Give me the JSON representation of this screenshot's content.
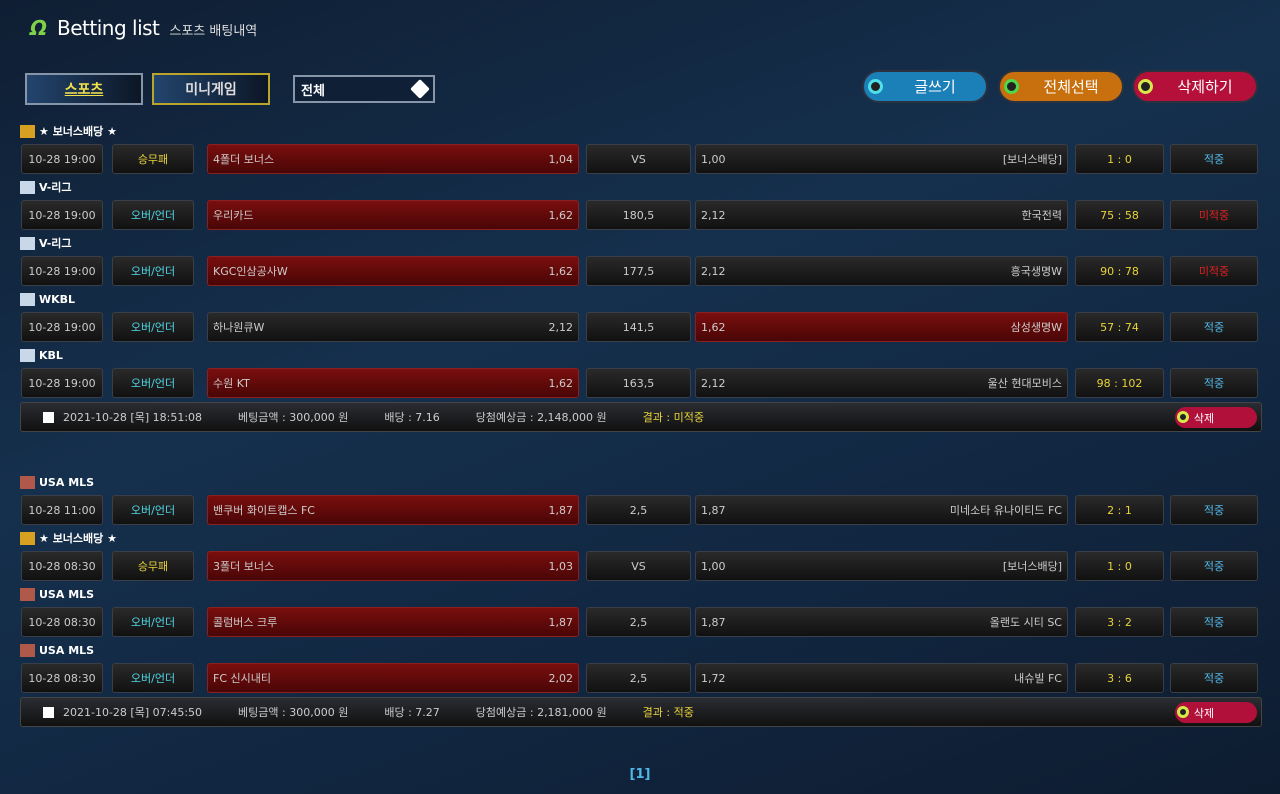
{
  "header": {
    "logo": "Ω",
    "title": "Betting list",
    "subtitle": "스포츠 배팅내역"
  },
  "tabs": [
    {
      "label": "스포츠",
      "active": true
    },
    {
      "label": "미니게임",
      "active": false
    }
  ],
  "filter": {
    "value": "전체"
  },
  "actions": [
    {
      "label": "글쓰기",
      "color": "#1b7fb8"
    },
    {
      "label": "전체선택",
      "color": "#c8700e"
    },
    {
      "label": "삭제하기",
      "color": "#b5103a"
    }
  ],
  "colors": {
    "win": "#4fb8e8",
    "lose": "#e02020",
    "score": "#e8d23a",
    "type_1x2": "#e8d23a",
    "type_ou": "#4fd8e8"
  },
  "bets": [
    {
      "rows": [
        {
          "league": "★ 보너스배당 ★",
          "time": "10-28 19:00",
          "type": "승무패",
          "home": "4폴더 보너스",
          "home_odds": "1,04",
          "handicap": "VS",
          "away_odds": "1,00",
          "away": "[보너스배당]",
          "score": "1 : 0",
          "result": "적중",
          "selected": "home"
        },
        {
          "league": "V-리그",
          "time": "10-28 19:00",
          "type": "오버/언더",
          "home": "우리카드",
          "home_odds": "1,62",
          "handicap": "180,5",
          "away_odds": "2,12",
          "away": "한국전력",
          "score": "75 : 58",
          "result": "미적중",
          "selected": "home"
        },
        {
          "league": "V-리그",
          "time": "10-28 19:00",
          "type": "오버/언더",
          "home": "KGC인삼공사W",
          "home_odds": "1,62",
          "handicap": "177,5",
          "away_odds": "2,12",
          "away": "흥국생명W",
          "score": "90 : 78",
          "result": "미적중",
          "selected": "home"
        },
        {
          "league": "WKBL",
          "time": "10-28 19:00",
          "type": "오버/언더",
          "home": "하나원큐W",
          "home_odds": "2,12",
          "handicap": "141,5",
          "away_odds": "1,62",
          "away": "삼성생명W",
          "score": "57 : 74",
          "result": "적중",
          "selected": "away"
        },
        {
          "league": "KBL",
          "time": "10-28 19:00",
          "type": "오버/언더",
          "home": "수원 KT",
          "home_odds": "1,62",
          "handicap": "163,5",
          "away_odds": "2,12",
          "away": "울산 현대모비스",
          "score": "98 : 102",
          "result": "적중",
          "selected": "home"
        }
      ],
      "summary": {
        "date": "2021-10-28 [목] 18:51:08",
        "amount": "베팅금액 : 300,000 원",
        "odds": "배당 : 7.16",
        "expected": "당첨예상금 : 2,148,000 원",
        "result": "결과 : 미적중",
        "delete": "삭제"
      }
    },
    {
      "rows": [
        {
          "league": "USA MLS",
          "time": "10-28 11:00",
          "type": "오버/언더",
          "home": "밴쿠버 화이트캡스 FC",
          "home_odds": "1,87",
          "handicap": "2,5",
          "away_odds": "1,87",
          "away": "미네소타 유나이티드 FC",
          "score": "2 : 1",
          "result": "적중",
          "selected": "home"
        },
        {
          "league": "★ 보너스배당 ★",
          "time": "10-28 08:30",
          "type": "승무패",
          "home": "3폴더 보너스",
          "home_odds": "1,03",
          "handicap": "VS",
          "away_odds": "1,00",
          "away": "[보너스배당]",
          "score": "1 : 0",
          "result": "적중",
          "selected": "home"
        },
        {
          "league": "USA MLS",
          "time": "10-28 08:30",
          "type": "오버/언더",
          "home": "콜럼버스 크루",
          "home_odds": "1,87",
          "handicap": "2,5",
          "away_odds": "1,87",
          "away": "올랜도 시티 SC",
          "score": "3 : 2",
          "result": "적중",
          "selected": "home"
        },
        {
          "league": "USA MLS",
          "time": "10-28 08:30",
          "type": "오버/언더",
          "home": "FC 신시내티",
          "home_odds": "2,02",
          "handicap": "2,5",
          "away_odds": "1,72",
          "away": "내슈빌 FC",
          "score": "3 : 6",
          "result": "적중",
          "selected": "home"
        }
      ],
      "summary": {
        "date": "2021-10-28 [목] 07:45:50",
        "amount": "베팅금액 : 300,000 원",
        "odds": "배당 : 7.27",
        "expected": "당첨예상금 : 2,181,000 원",
        "result": "결과 : 적중",
        "delete": "삭제"
      }
    }
  ],
  "pagination": {
    "current": "[1]"
  }
}
